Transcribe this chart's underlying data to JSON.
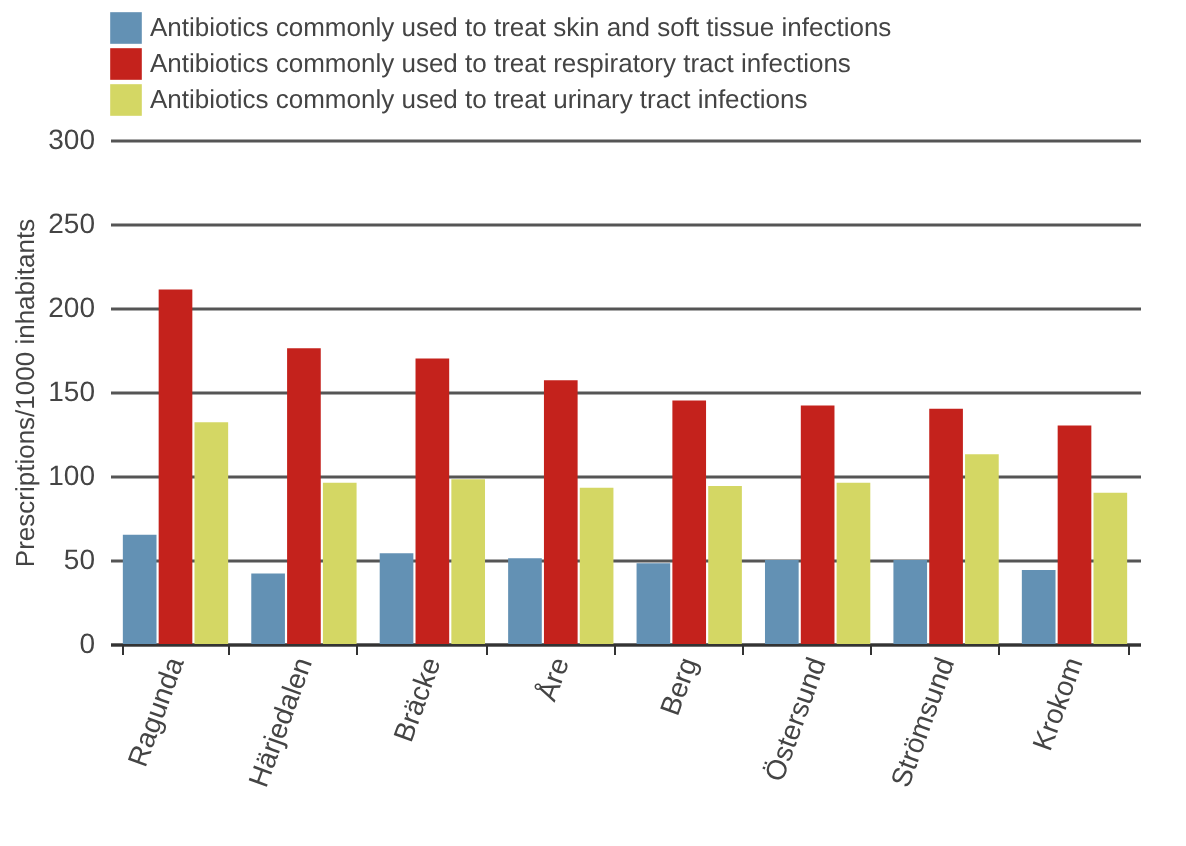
{
  "chart_data": {
    "type": "bar",
    "ylabel": "Prescriptions/1000 inhabitants",
    "categories": [
      "Ragunda",
      "Härjedalen",
      "Bräcke",
      "Åre",
      "Berg",
      "Östersund",
      "Strömsund",
      "Krokom"
    ],
    "series": [
      {
        "name": "Antibiotics commonly used to treat skin and soft tissue infections",
        "color": "#6391b4",
        "values": [
          65,
          42,
          54,
          51,
          48,
          50,
          50,
          44
        ]
      },
      {
        "name": "Antibiotics commonly used to treat respiratory tract infections",
        "color": "#c4221c",
        "values": [
          211,
          176,
          170,
          157,
          145,
          142,
          140,
          130
        ]
      },
      {
        "name": "Antibiotics commonly used to treat urinary tract infections",
        "color": "#d4d764",
        "values": [
          132,
          96,
          98,
          93,
          94,
          96,
          113,
          90
        ]
      }
    ],
    "ylim": [
      0,
      300
    ],
    "yticks": [
      0,
      50,
      100,
      150,
      200,
      250,
      300
    ],
    "grid": "y",
    "legend": "top"
  }
}
